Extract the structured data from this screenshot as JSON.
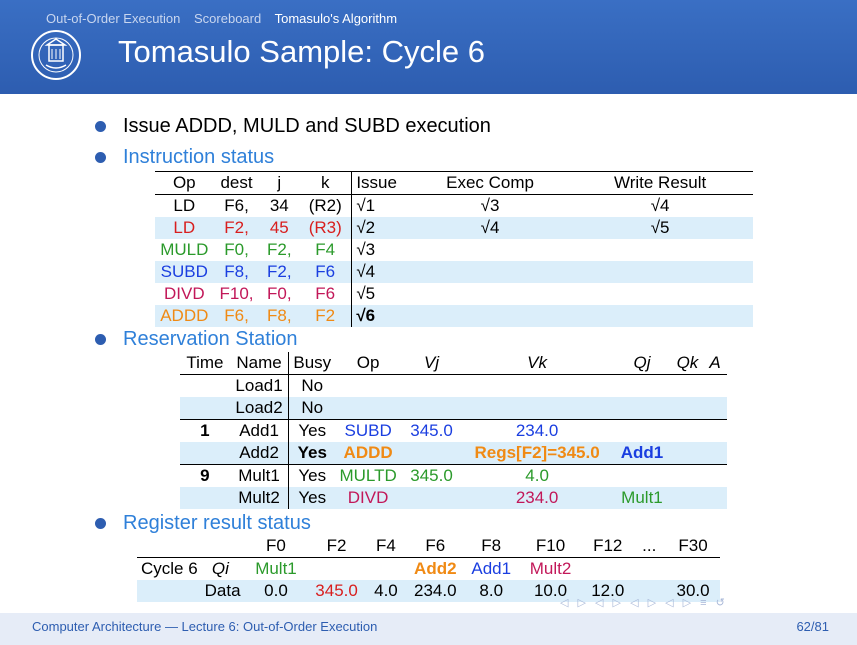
{
  "nav": {
    "items": [
      "Out-of-Order Execution",
      "Scoreboard",
      "Tomasulo's Algorithm"
    ],
    "active_index": 2
  },
  "title": "Tomasulo Sample: Cycle 6",
  "bullets": {
    "b1": "Issue ADDD, MULD and SUBD execution",
    "b2": "Instruction status",
    "b3": "Reservation Station",
    "b4": "Register result status"
  },
  "instruction_status": {
    "headers": [
      "Op",
      "dest",
      "j",
      "k",
      "Issue",
      "Exec Comp",
      "Write Result"
    ],
    "rows": [
      {
        "op": "LD",
        "dest": "F6,",
        "j": "34",
        "k": "(R2)",
        "issue": "√1",
        "exec": "√3",
        "write": "√4",
        "color": "black"
      },
      {
        "op": "LD",
        "dest": "F2,",
        "j": "45",
        "k": "(R3)",
        "issue": "√2",
        "exec": "√4",
        "write": "√5",
        "color": "red"
      },
      {
        "op": "MULD",
        "dest": "F0,",
        "j": "F2,",
        "k": "F4",
        "issue": "√3",
        "exec": "",
        "write": "",
        "color": "green"
      },
      {
        "op": "SUBD",
        "dest": "F8,",
        "j": "F2,",
        "k": "F6",
        "issue": "√4",
        "exec": "",
        "write": "",
        "color": "blue"
      },
      {
        "op": "DIVD",
        "dest": "F10,",
        "j": "F0,",
        "k": "F6",
        "issue": "√5",
        "exec": "",
        "write": "",
        "color": "crimson"
      },
      {
        "op": "ADDD",
        "dest": "F6,",
        "j": "F8,",
        "k": "F2",
        "issue": "√6",
        "exec": "",
        "write": "",
        "color": "orange"
      }
    ]
  },
  "reservation_station": {
    "headers": [
      "Time",
      "Name",
      "Busy",
      "Op",
      "Vj",
      "Vk",
      "Qj",
      "Qk",
      "A"
    ],
    "rows": [
      {
        "time": "",
        "name": "Load1",
        "busy": "No",
        "op": "",
        "vj": "",
        "vk": "",
        "qj": ""
      },
      {
        "time": "",
        "name": "Load2",
        "busy": "No",
        "op": "",
        "vj": "",
        "vk": "",
        "qj": ""
      },
      {
        "time": "1",
        "name": "Add1",
        "busy": "Yes",
        "op": "SUBD",
        "vj": "345.0",
        "vk": "234.0",
        "qj": ""
      },
      {
        "time": "",
        "name": "Add2",
        "busy": "Yes",
        "op": "ADDD",
        "vj": "",
        "vk": "Regs[F2]=345.0",
        "qj": "Add1"
      },
      {
        "time": "9",
        "name": "Mult1",
        "busy": "Yes",
        "op": "MULTD",
        "vj": "345.0",
        "vk": "4.0",
        "qj": ""
      },
      {
        "time": "",
        "name": "Mult2",
        "busy": "Yes",
        "op": "DIVD",
        "vj": "",
        "vk": "234.0",
        "qj": "Mult1"
      }
    ]
  },
  "register_status": {
    "headers": [
      "F0",
      "F2",
      "F4",
      "F6",
      "F8",
      "F10",
      "F12",
      "...",
      "F30"
    ],
    "cycle_label": "Cycle 6",
    "qi_label": "Qi",
    "qi": [
      "Mult1",
      "",
      "",
      "Add2",
      "Add1",
      "Mult2",
      "",
      "",
      ""
    ],
    "data_label": "Data",
    "data": [
      "0.0",
      "345.0",
      "4.0",
      "234.0",
      "8.0",
      "10.0",
      "12.0",
      "",
      "30.0"
    ]
  },
  "footer": {
    "left": "Computer Architecture — Lecture 6: Out-of-Order Execution",
    "page": "62/81"
  },
  "icons": [
    "university-seal-icon",
    "beamer-navigation-icons"
  ]
}
